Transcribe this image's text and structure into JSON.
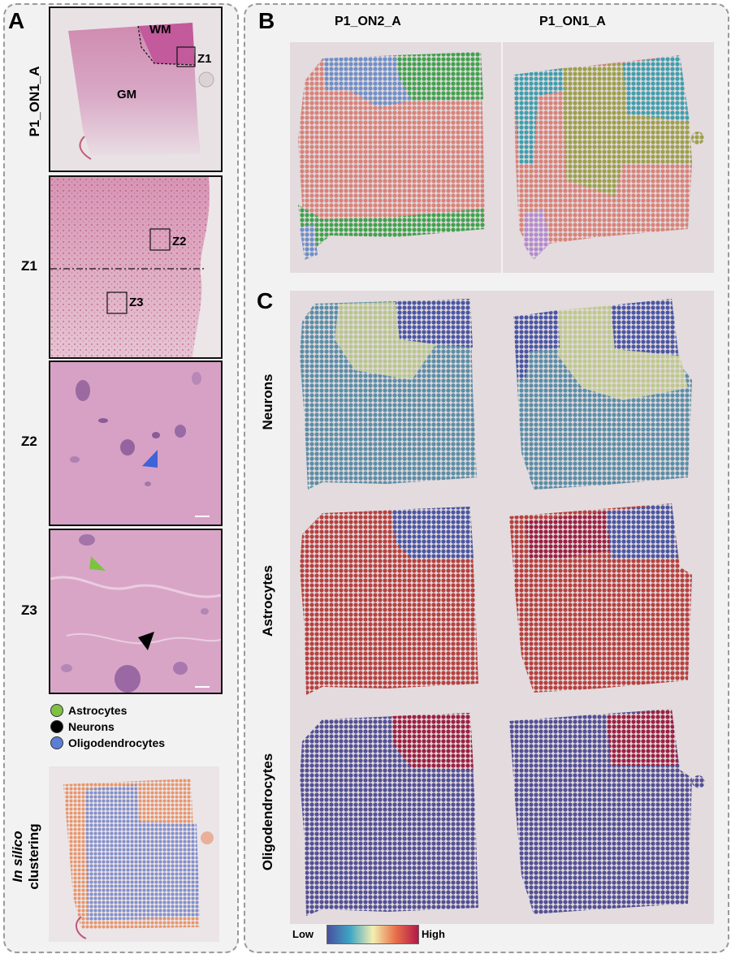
{
  "panel_a": {
    "letter": "A",
    "sample_label": "P1_ON1_A",
    "tissue_labels": {
      "wm": "WM",
      "gm": "GM",
      "z1_box": "Z1"
    },
    "z1": {
      "row_label": "Z1",
      "box_z2": "Z2",
      "box_z3": "Z3"
    },
    "z2": {
      "row_label": "Z2"
    },
    "z3": {
      "row_label": "Z3"
    },
    "legend": [
      {
        "label": "Astrocytes",
        "color": "#7ec242"
      },
      {
        "label": "Neurons",
        "color": "#000000"
      },
      {
        "label": "Oligodendrocytes",
        "color": "#5b7fd6"
      }
    ],
    "clustering_label_italic": "In silico",
    "clustering_label": "clustering",
    "cluster_colors": {
      "gm": "#e8956a",
      "wm": "#7f8fd0"
    }
  },
  "panel_b": {
    "letter": "B",
    "samples": [
      "P1_ON2_A",
      "P1_ON1_A"
    ],
    "cluster_colors": {
      "red": "#d9827a",
      "green": "#3fa34d",
      "blue": "#6f8fc9",
      "olive": "#9da04a",
      "teal": "#3f9fae",
      "purple": "#b48ad0"
    }
  },
  "panel_c": {
    "letter": "C",
    "rows": [
      "Neurons",
      "Astrocytes",
      "Oligodendrocytes"
    ],
    "colorbar": {
      "low": "Low",
      "high": "High",
      "colors": [
        "#4a4fa0",
        "#3fa6c4",
        "#f3efb0",
        "#e8704a",
        "#b3174a"
      ]
    }
  }
}
